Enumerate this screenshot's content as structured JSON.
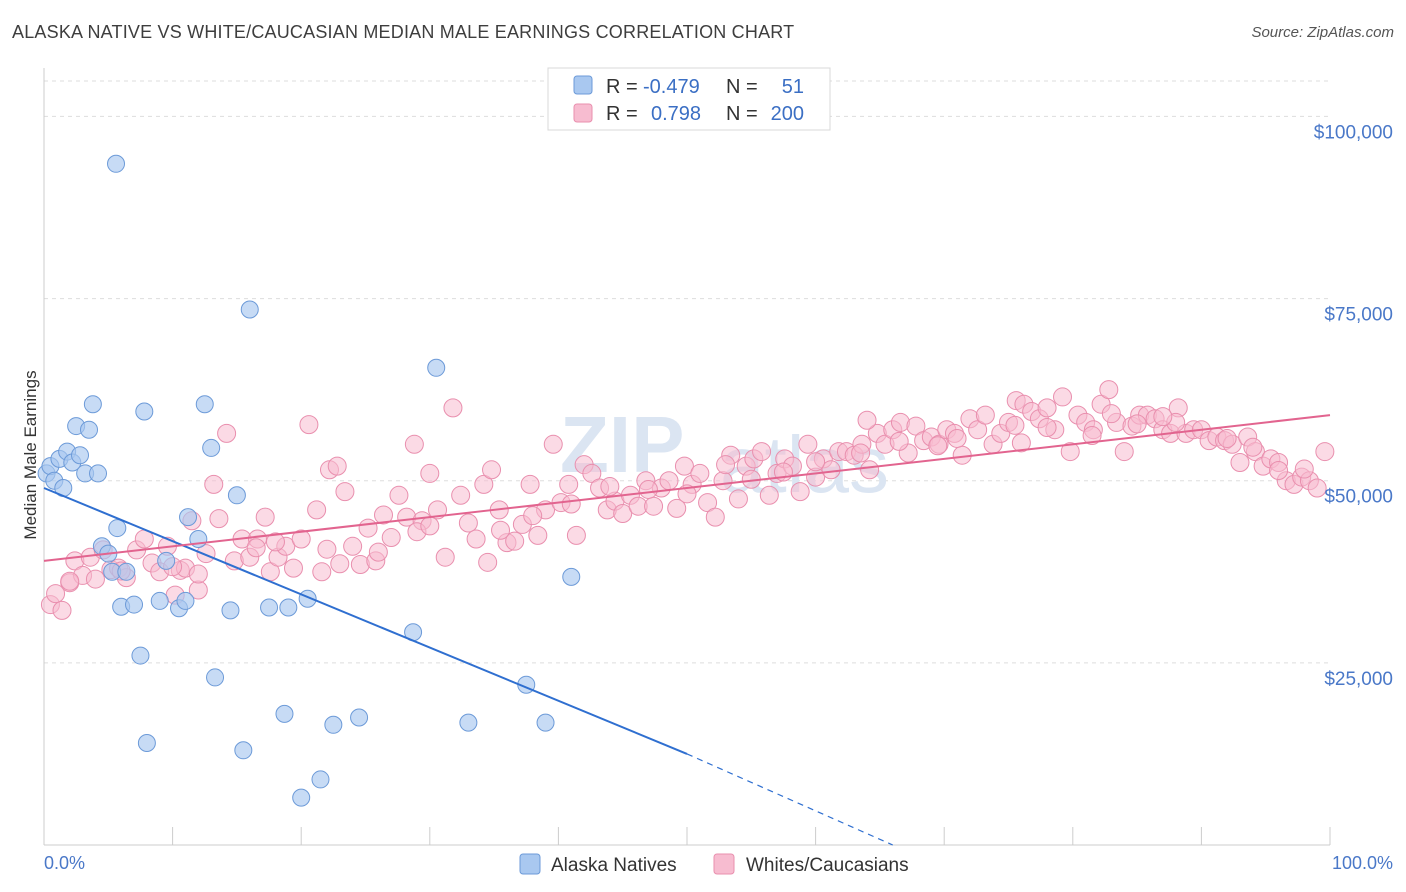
{
  "title": "ALASKA NATIVE VS WHITE/CAUCASIAN MEDIAN MALE EARNINGS CORRELATION CHART",
  "source": "Source: ZipAtlas.com",
  "watermark": {
    "zip": "ZIP",
    "atlas": "atlas"
  },
  "colors": {
    "blue_fill": "#a9c8f0",
    "blue_stroke": "#6c9ad8",
    "blue_line": "#2f6fd0",
    "pink_fill": "#f7bcd0",
    "pink_stroke": "#e98fae",
    "pink_line": "#e2648f",
    "grid": "#dddddd",
    "tick_label": "#4a78c8"
  },
  "legend": {
    "rows": [
      {
        "r_label": "R =",
        "r_value": "-0.479",
        "n_label": "N =",
        "n_value": "51"
      },
      {
        "r_label": "R =",
        "r_value": "0.798",
        "n_label": "N =",
        "n_value": "200"
      }
    ]
  },
  "bottom_legend": [
    "Alaska Natives",
    "Whites/Caucasians"
  ],
  "chart_data": {
    "type": "scatter",
    "xlabel": "",
    "ylabel": "Median Male Earnings",
    "xlim": [
      0,
      100
    ],
    "ylim": [
      0,
      105000
    ],
    "x_tick_labels": [
      "0.0%",
      "100.0%"
    ],
    "y_ticks": [
      25000,
      50000,
      75000,
      100000
    ],
    "y_tick_labels": [
      "$25,000",
      "$50,000",
      "$75,000",
      "$100,000"
    ],
    "grid": true,
    "legend_position": "top-center",
    "series": [
      {
        "name": "Alaska Natives",
        "color": "#a9c8f0",
        "trend": {
          "x0": 0,
          "y0": 49000,
          "x1": 50,
          "y1": 12500,
          "dashed_to_x": 66,
          "dashed_to_y": 0
        },
        "points": [
          [
            0.2,
            51000
          ],
          [
            0.5,
            52000
          ],
          [
            0.8,
            50000
          ],
          [
            1.2,
            53000
          ],
          [
            1.5,
            49000
          ],
          [
            1.8,
            54000
          ],
          [
            2.2,
            52500
          ],
          [
            2.5,
            57500
          ],
          [
            2.8,
            53500
          ],
          [
            3.2,
            51000
          ],
          [
            3.5,
            57000
          ],
          [
            3.8,
            60500
          ],
          [
            4.2,
            51000
          ],
          [
            4.5,
            41000
          ],
          [
            5.0,
            40000
          ],
          [
            5.3,
            37500
          ],
          [
            5.7,
            43500
          ],
          [
            6.0,
            32700
          ],
          [
            6.4,
            37500
          ],
          [
            7.0,
            33000
          ],
          [
            7.5,
            26000
          ],
          [
            8.0,
            14000
          ],
          [
            5.6,
            93500
          ],
          [
            7.8,
            59500
          ],
          [
            9.0,
            33500
          ],
          [
            9.5,
            39000
          ],
          [
            10.5,
            32500
          ],
          [
            11.2,
            45000
          ],
          [
            11.0,
            33500
          ],
          [
            12.0,
            42000
          ],
          [
            12.5,
            60500
          ],
          [
            13.0,
            54500
          ],
          [
            13.3,
            23000
          ],
          [
            14.5,
            32200
          ],
          [
            15.0,
            48000
          ],
          [
            15.5,
            13000
          ],
          [
            16.0,
            73500
          ],
          [
            17.5,
            32600
          ],
          [
            18.7,
            18000
          ],
          [
            19.0,
            32600
          ],
          [
            20.5,
            33800
          ],
          [
            21.5,
            9000
          ],
          [
            20.0,
            6500
          ],
          [
            22.5,
            16500
          ],
          [
            24.5,
            17500
          ],
          [
            28.7,
            29200
          ],
          [
            30.5,
            65500
          ],
          [
            33.0,
            16800
          ],
          [
            37.5,
            22000
          ],
          [
            39.0,
            16800
          ],
          [
            41.0,
            36800
          ]
        ]
      },
      {
        "name": "Whites/Caucasians",
        "color": "#f7bcd0",
        "trend": {
          "x0": 0,
          "y0": 39000,
          "x1": 100,
          "y1": 59000
        },
        "points": [
          [
            0.5,
            33000
          ],
          [
            0.9,
            34500
          ],
          [
            1.4,
            32200
          ],
          [
            2.0,
            36000
          ],
          [
            2.4,
            39000
          ],
          [
            3.0,
            37000
          ],
          [
            3.6,
            39500
          ],
          [
            4.0,
            36500
          ],
          [
            4.6,
            40500
          ],
          [
            5.2,
            37800
          ],
          [
            5.8,
            38000
          ],
          [
            6.4,
            36700
          ],
          [
            7.2,
            40500
          ],
          [
            7.8,
            42000
          ],
          [
            8.4,
            38700
          ],
          [
            9.0,
            37500
          ],
          [
            9.6,
            41000
          ],
          [
            10.2,
            34300
          ],
          [
            10.6,
            37700
          ],
          [
            11.0,
            38000
          ],
          [
            11.5,
            44500
          ],
          [
            12.0,
            35000
          ],
          [
            12.6,
            40000
          ],
          [
            13.2,
            49500
          ],
          [
            13.6,
            44800
          ],
          [
            14.2,
            56500
          ],
          [
            14.8,
            39000
          ],
          [
            15.4,
            42000
          ],
          [
            16.0,
            39500
          ],
          [
            16.6,
            42000
          ],
          [
            17.2,
            45000
          ],
          [
            17.6,
            37500
          ],
          [
            18.2,
            39500
          ],
          [
            18.8,
            41000
          ],
          [
            19.4,
            38000
          ],
          [
            20.0,
            42000
          ],
          [
            20.6,
            57700
          ],
          [
            21.2,
            46000
          ],
          [
            21.6,
            37500
          ],
          [
            22.2,
            51500
          ],
          [
            22.8,
            52000
          ],
          [
            23.4,
            48500
          ],
          [
            24.0,
            41000
          ],
          [
            24.6,
            38500
          ],
          [
            25.2,
            43500
          ],
          [
            25.8,
            39000
          ],
          [
            26.4,
            45300
          ],
          [
            27.0,
            42200
          ],
          [
            27.6,
            48000
          ],
          [
            28.2,
            45000
          ],
          [
            28.8,
            55000
          ],
          [
            29.4,
            44500
          ],
          [
            30.0,
            51000
          ],
          [
            30.6,
            46000
          ],
          [
            31.2,
            39500
          ],
          [
            31.8,
            60000
          ],
          [
            32.4,
            48000
          ],
          [
            33.0,
            44200
          ],
          [
            33.6,
            42000
          ],
          [
            34.2,
            49500
          ],
          [
            34.8,
            51500
          ],
          [
            35.4,
            46000
          ],
          [
            36.0,
            41500
          ],
          [
            36.6,
            41700
          ],
          [
            37.2,
            44000
          ],
          [
            37.8,
            49500
          ],
          [
            38.4,
            42500
          ],
          [
            39.0,
            46000
          ],
          [
            39.6,
            55000
          ],
          [
            40.2,
            47000
          ],
          [
            40.8,
            49500
          ],
          [
            41.4,
            42500
          ],
          [
            42.0,
            52200
          ],
          [
            42.6,
            51000
          ],
          [
            43.2,
            49000
          ],
          [
            43.8,
            46000
          ],
          [
            44.4,
            47200
          ],
          [
            45.0,
            45500
          ],
          [
            45.6,
            48000
          ],
          [
            46.2,
            46500
          ],
          [
            46.8,
            50000
          ],
          [
            47.4,
            46500
          ],
          [
            48.0,
            49000
          ],
          [
            48.6,
            50000
          ],
          [
            49.2,
            46200
          ],
          [
            49.8,
            52000
          ],
          [
            50.4,
            49500
          ],
          [
            51.0,
            51000
          ],
          [
            51.6,
            47000
          ],
          [
            52.2,
            45000
          ],
          [
            52.8,
            50000
          ],
          [
            53.4,
            53500
          ],
          [
            54.0,
            47500
          ],
          [
            54.6,
            52000
          ],
          [
            55.2,
            53000
          ],
          [
            55.8,
            54000
          ],
          [
            56.4,
            48000
          ],
          [
            57.0,
            51000
          ],
          [
            57.6,
            53000
          ],
          [
            58.2,
            52000
          ],
          [
            58.8,
            48500
          ],
          [
            59.4,
            55000
          ],
          [
            60.0,
            50500
          ],
          [
            60.6,
            53000
          ],
          [
            61.2,
            51500
          ],
          [
            61.8,
            54000
          ],
          [
            62.4,
            54000
          ],
          [
            63.0,
            53500
          ],
          [
            63.6,
            55000
          ],
          [
            64.2,
            51500
          ],
          [
            64.8,
            56500
          ],
          [
            65.4,
            55000
          ],
          [
            66.0,
            57000
          ],
          [
            66.6,
            58000
          ],
          [
            67.2,
            53800
          ],
          [
            67.8,
            57500
          ],
          [
            68.4,
            55500
          ],
          [
            69.0,
            56000
          ],
          [
            69.6,
            55000
          ],
          [
            70.2,
            57000
          ],
          [
            70.8,
            56500
          ],
          [
            71.4,
            53500
          ],
          [
            72.0,
            58500
          ],
          [
            72.6,
            57000
          ],
          [
            73.2,
            59000
          ],
          [
            73.8,
            55000
          ],
          [
            74.4,
            56500
          ],
          [
            75.0,
            58000
          ],
          [
            75.6,
            61000
          ],
          [
            76.2,
            60500
          ],
          [
            76.8,
            59500
          ],
          [
            77.4,
            58500
          ],
          [
            78.0,
            60000
          ],
          [
            78.6,
            57000
          ],
          [
            79.2,
            61500
          ],
          [
            79.8,
            54000
          ],
          [
            80.4,
            59000
          ],
          [
            81.0,
            58000
          ],
          [
            81.6,
            57000
          ],
          [
            82.2,
            60500
          ],
          [
            82.8,
            62500
          ],
          [
            83.4,
            58000
          ],
          [
            84.0,
            54000
          ],
          [
            84.6,
            57500
          ],
          [
            85.2,
            59000
          ],
          [
            85.8,
            59000
          ],
          [
            86.4,
            58500
          ],
          [
            87.0,
            57000
          ],
          [
            87.6,
            56500
          ],
          [
            88.2,
            60000
          ],
          [
            88.8,
            56500
          ],
          [
            89.4,
            57000
          ],
          [
            90.0,
            57000
          ],
          [
            90.6,
            55500
          ],
          [
            91.2,
            56000
          ],
          [
            91.8,
            55500
          ],
          [
            92.4,
            55000
          ],
          [
            93.0,
            52500
          ],
          [
            93.6,
            56000
          ],
          [
            94.2,
            54000
          ],
          [
            94.8,
            52000
          ],
          [
            95.4,
            53000
          ],
          [
            96.0,
            52500
          ],
          [
            96.6,
            50000
          ],
          [
            97.2,
            49500
          ],
          [
            97.8,
            50500
          ],
          [
            98.4,
            50000
          ],
          [
            99.0,
            49000
          ],
          [
            99.6,
            54000
          ],
          [
            26.0,
            40200
          ],
          [
            34.5,
            38800
          ],
          [
            53.0,
            52200
          ],
          [
            64.0,
            58300
          ],
          [
            76.0,
            55200
          ],
          [
            85.0,
            57800
          ],
          [
            92.0,
            55800
          ],
          [
            2.0,
            36200
          ],
          [
            6.0,
            37600
          ],
          [
            12.0,
            37200
          ],
          [
            18.0,
            41600
          ],
          [
            23.0,
            38600
          ],
          [
            29.0,
            43000
          ],
          [
            35.5,
            43200
          ],
          [
            41.0,
            46800
          ],
          [
            47.0,
            48800
          ],
          [
            55.0,
            50200
          ],
          [
            60.0,
            52600
          ],
          [
            66.5,
            55400
          ],
          [
            71.0,
            55800
          ],
          [
            78.0,
            57300
          ],
          [
            83.0,
            59200
          ],
          [
            88.0,
            58000
          ],
          [
            94.0,
            54600
          ],
          [
            98.0,
            51600
          ],
          [
            10.0,
            38200
          ],
          [
            16.5,
            40800
          ],
          [
            22.0,
            40600
          ],
          [
            30.0,
            43800
          ],
          [
            38.0,
            45200
          ],
          [
            44.0,
            49200
          ],
          [
            50.0,
            48200
          ],
          [
            57.5,
            51200
          ],
          [
            63.5,
            53800
          ],
          [
            69.5,
            54800
          ],
          [
            75.5,
            57600
          ],
          [
            81.5,
            56200
          ],
          [
            87.0,
            58800
          ],
          [
            96.0,
            51400
          ]
        ]
      }
    ]
  }
}
